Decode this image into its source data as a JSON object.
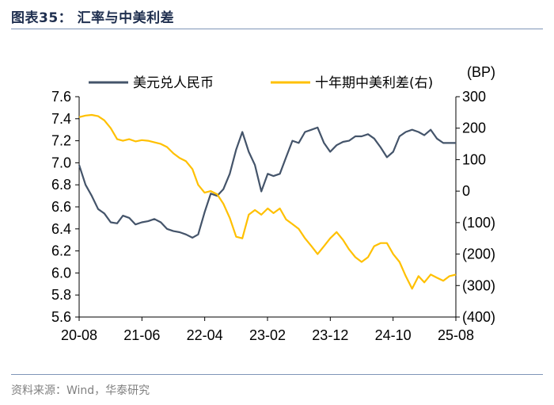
{
  "figure": {
    "title": "图表35：  汇率与中美利差",
    "source": "资料来源：Wind，华泰研究"
  },
  "chart_data": {
    "type": "line",
    "x_tick_labels": [
      "20-08",
      "21-06",
      "22-04",
      "23-02",
      "23-12",
      "24-10",
      "25-08"
    ],
    "left_axis": {
      "ylim": [
        5.6,
        7.6
      ],
      "ticks": [
        "5.6",
        "5.8",
        "6.0",
        "6.2",
        "6.4",
        "6.6",
        "6.8",
        "7.0",
        "7.2",
        "7.4",
        "7.6"
      ]
    },
    "right_axis": {
      "unit_label": "(BP)",
      "ylim": [
        -400,
        300
      ],
      "ticks": [
        "(400)",
        "(300)",
        "(200)",
        "(100)",
        "0",
        "100",
        "200",
        "300"
      ]
    },
    "legend_position": "top",
    "series": [
      {
        "name": "美元兑人民币",
        "axis": "left",
        "color": "#44546a",
        "x": [
          "2020-08",
          "2020-09",
          "2020-10",
          "2020-11",
          "2020-12",
          "2021-01",
          "2021-02",
          "2021-03",
          "2021-04",
          "2021-05",
          "2021-06",
          "2021-07",
          "2021-08",
          "2021-09",
          "2021-10",
          "2021-11",
          "2021-12",
          "2022-01",
          "2022-02",
          "2022-03",
          "2022-04",
          "2022-05",
          "2022-06",
          "2022-07",
          "2022-08",
          "2022-09",
          "2022-10",
          "2022-11",
          "2022-12",
          "2023-01",
          "2023-02",
          "2023-03",
          "2023-04",
          "2023-05",
          "2023-06",
          "2023-07",
          "2023-08",
          "2023-09",
          "2023-10",
          "2023-11",
          "2023-12",
          "2024-01",
          "2024-02",
          "2024-03",
          "2024-04",
          "2024-05",
          "2024-06",
          "2024-07",
          "2024-08",
          "2024-09",
          "2024-10",
          "2024-11",
          "2024-12",
          "2025-01",
          "2025-02",
          "2025-03",
          "2025-04",
          "2025-05",
          "2025-06",
          "2025-07",
          "2025-08"
        ],
        "values": [
          6.98,
          6.8,
          6.7,
          6.58,
          6.54,
          6.46,
          6.45,
          6.52,
          6.5,
          6.44,
          6.46,
          6.47,
          6.49,
          6.46,
          6.4,
          6.38,
          6.37,
          6.35,
          6.32,
          6.35,
          6.55,
          6.72,
          6.7,
          6.76,
          6.9,
          7.12,
          7.28,
          7.1,
          6.98,
          6.74,
          6.9,
          6.88,
          6.9,
          7.05,
          7.2,
          7.18,
          7.28,
          7.3,
          7.32,
          7.18,
          7.1,
          7.16,
          7.19,
          7.2,
          7.24,
          7.24,
          7.26,
          7.22,
          7.14,
          7.05,
          7.1,
          7.24,
          7.28,
          7.3,
          7.28,
          7.25,
          7.3,
          7.22,
          7.18,
          7.18,
          7.18
        ]
      },
      {
        "name": "十年期中美利差(右)",
        "axis": "right",
        "color": "#ffc000",
        "x": [
          "2020-08",
          "2020-09",
          "2020-10",
          "2020-11",
          "2020-12",
          "2021-01",
          "2021-02",
          "2021-03",
          "2021-04",
          "2021-05",
          "2021-06",
          "2021-07",
          "2021-08",
          "2021-09",
          "2021-10",
          "2021-11",
          "2021-12",
          "2022-01",
          "2022-02",
          "2022-03",
          "2022-04",
          "2022-05",
          "2022-06",
          "2022-07",
          "2022-08",
          "2022-09",
          "2022-10",
          "2022-11",
          "2022-12",
          "2023-01",
          "2023-02",
          "2023-03",
          "2023-04",
          "2023-05",
          "2023-06",
          "2023-07",
          "2023-08",
          "2023-09",
          "2023-10",
          "2023-11",
          "2023-12",
          "2024-01",
          "2024-02",
          "2024-03",
          "2024-04",
          "2024-05",
          "2024-06",
          "2024-07",
          "2024-08",
          "2024-09",
          "2024-10",
          "2024-11",
          "2024-12",
          "2025-01",
          "2025-02",
          "2025-03",
          "2025-04",
          "2025-05",
          "2025-06",
          "2025-07",
          "2025-08"
        ],
        "values": [
          235,
          240,
          242,
          238,
          225,
          200,
          165,
          160,
          165,
          158,
          162,
          160,
          155,
          150,
          140,
          120,
          105,
          95,
          70,
          20,
          -5,
          0,
          -10,
          -40,
          -85,
          -145,
          -150,
          -75,
          -60,
          -75,
          -55,
          -70,
          -55,
          -90,
          -105,
          -120,
          -150,
          -175,
          -200,
          -175,
          -150,
          -130,
          -155,
          -185,
          -210,
          -225,
          -210,
          -175,
          -165,
          -165,
          -200,
          -225,
          -270,
          -310,
          -270,
          -290,
          -265,
          -275,
          -285,
          -270,
          -265
        ]
      }
    ]
  }
}
